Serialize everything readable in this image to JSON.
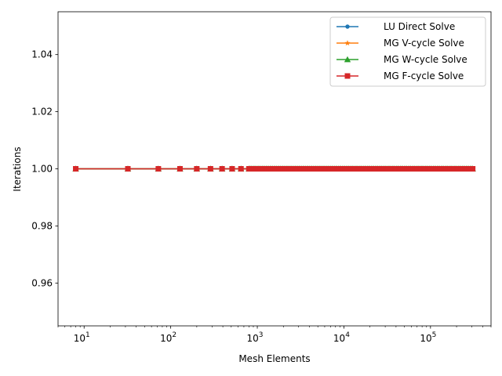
{
  "chart_data": {
    "type": "line",
    "title": "",
    "xlabel": "Mesh Elements",
    "ylabel": "Iterations",
    "xscale": "log",
    "xlim": [
      5,
      500000
    ],
    "ylim": [
      0.945,
      1.055
    ],
    "x_ticks": [
      {
        "value": 10,
        "base": "10",
        "exp": "1"
      },
      {
        "value": 100,
        "base": "10",
        "exp": "2"
      },
      {
        "value": 1000,
        "base": "10",
        "exp": "3"
      },
      {
        "value": 10000,
        "base": "10",
        "exp": "4"
      },
      {
        "value": 100000,
        "base": "10",
        "exp": "5"
      }
    ],
    "y_ticks": [
      {
        "value": 0.96,
        "label": "0.96"
      },
      {
        "value": 0.98,
        "label": "0.98"
      },
      {
        "value": 1.0,
        "label": "1.00"
      },
      {
        "value": 1.02,
        "label": "1.02"
      },
      {
        "value": 1.04,
        "label": "1.04"
      }
    ],
    "grid": false,
    "legend_position": "top-right",
    "x": [
      8,
      32,
      72,
      128,
      200,
      288,
      392,
      512,
      648,
      800
    ],
    "dense_range": [
      800,
      307200
    ],
    "series": [
      {
        "name": "LU Direct Solve",
        "color": "#1f77b4",
        "marker": "dot",
        "value": 1.0
      },
      {
        "name": "MG V-cycle Solve",
        "color": "#ff7f0e",
        "marker": "star",
        "value": 1.0
      },
      {
        "name": "MG W-cycle Solve",
        "color": "#2ca02c",
        "marker": "triangle",
        "value": 1.0
      },
      {
        "name": "MG F-cycle Solve",
        "color": "#d62728",
        "marker": "square",
        "value": 1.0
      }
    ]
  }
}
